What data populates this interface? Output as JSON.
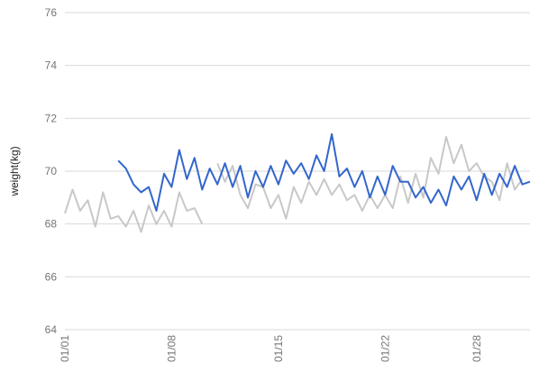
{
  "chart_data": {
    "type": "line",
    "title": "",
    "xlabel": "",
    "ylabel": "weight(kg)",
    "ylim": [
      64,
      76
    ],
    "yticks": [
      "64",
      "66",
      "68",
      "70",
      "72",
      "74",
      "76"
    ],
    "xlim": [
      0,
      61
    ],
    "xticks": [
      {
        "x": 0,
        "label": "01/01"
      },
      {
        "x": 14,
        "label": "01/08"
      },
      {
        "x": 28,
        "label": "01/15"
      },
      {
        "x": 42,
        "label": "01/22"
      },
      {
        "x": 54,
        "label": "01/28"
      }
    ],
    "grid": true,
    "legend": "none",
    "series": [
      {
        "color": "#c8c8c8",
        "x0": 0,
        "values": [
          68.4,
          69.3,
          68.5,
          68.9,
          67.9,
          69.2,
          68.2,
          68.3,
          67.9,
          68.5,
          67.7,
          68.7,
          68.0,
          68.5,
          67.9,
          69.2,
          68.5,
          68.6,
          68.0,
          null,
          null,
          null,
          null,
          null,
          null,
          null,
          null,
          null,
          null,
          null,
          null,
          null,
          null,
          null,
          null,
          null,
          null,
          null,
          null,
          null,
          null,
          null,
          null,
          null,
          null,
          null,
          null,
          null,
          null,
          null,
          null,
          null,
          null,
          null,
          null,
          null,
          null,
          null,
          null,
          null,
          null
        ]
      },
      {
        "color": "#c8c8c8",
        "x0": 20,
        "values": [
          70.3,
          69.6,
          70.2,
          69.1,
          68.6,
          69.5,
          69.4,
          68.6,
          69.1,
          68.2,
          69.4,
          68.8,
          69.6,
          69.1,
          69.7,
          69.1,
          69.5,
          68.9,
          69.1,
          68.5,
          69.1,
          68.6,
          69.1,
          68.6,
          69.8,
          68.8,
          69.9,
          69.0,
          70.5,
          69.9,
          71.3,
          70.3,
          71.0,
          70.0,
          70.3,
          69.8,
          69.6,
          68.9,
          70.3,
          69.3,
          69.7
        ]
      },
      {
        "color": "#3366cc",
        "x0": 7,
        "values": [
          70.4,
          70.1,
          69.5,
          69.2,
          69.4,
          68.5,
          69.9,
          69.4,
          70.8,
          69.7,
          70.5,
          69.3,
          70.1,
          69.5,
          70.3,
          69.4,
          70.2,
          69.0,
          70.0,
          69.4,
          70.2,
          69.5,
          70.4,
          69.9,
          70.3,
          69.7,
          70.6,
          70.0,
          71.4,
          69.8,
          70.1,
          69.4,
          70.0,
          69.0,
          69.8,
          69.1,
          70.2,
          69.6,
          69.6,
          69.0,
          69.4,
          68.8,
          69.3,
          68.7,
          69.8,
          69.3,
          69.8,
          68.9,
          69.9,
          69.1,
          69.9,
          69.4,
          70.2,
          69.5,
          69.6
        ]
      }
    ]
  }
}
